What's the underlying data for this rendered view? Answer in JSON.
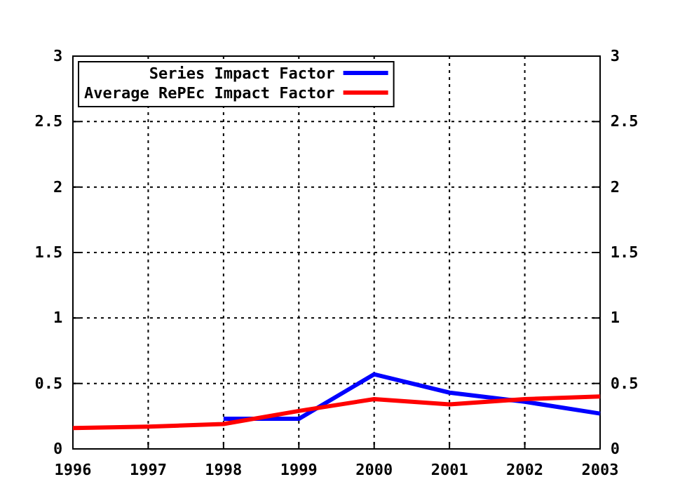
{
  "chart_data": {
    "type": "line",
    "x": [
      1996,
      1997,
      1998,
      1999,
      2000,
      2001,
      2002,
      2003
    ],
    "series": [
      {
        "name": "Series Impact Factor",
        "color": "#0000ff",
        "values": [
          null,
          null,
          0.23,
          0.23,
          0.57,
          0.43,
          0.36,
          0.27
        ]
      },
      {
        "name": "Average RePEc Impact Factor",
        "color": "#ff0000",
        "values": [
          0.16,
          0.17,
          0.19,
          0.29,
          0.38,
          0.34,
          0.38,
          0.4
        ]
      }
    ],
    "xlim": [
      1996,
      2003
    ],
    "xticks": [
      1996,
      1997,
      1998,
      1999,
      2000,
      2001,
      2002,
      2003
    ],
    "ylim": [
      0,
      3
    ],
    "yticks": [
      0,
      0.5,
      1,
      1.5,
      2,
      2.5,
      3
    ],
    "y2lim": [
      0,
      3
    ],
    "y2ticks": [
      0,
      0.5,
      1,
      1.5,
      2,
      2.5,
      3
    ],
    "grid": true,
    "legend": "top left",
    "marker": "none",
    "line_style": "solid"
  }
}
